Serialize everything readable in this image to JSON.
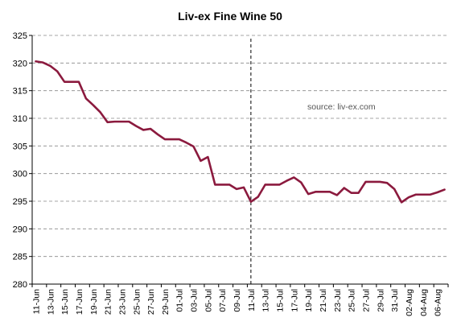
{
  "chart_data": {
    "type": "line",
    "title": "Liv-ex Fine Wine 50",
    "annotation": "source: liv-ex.com",
    "xlabel": "",
    "ylabel": "",
    "ylim": [
      280,
      325
    ],
    "yticks": [
      280,
      285,
      290,
      295,
      300,
      305,
      310,
      315,
      320,
      325
    ],
    "grid": true,
    "grid_style": "dashed",
    "legend": "none",
    "vertical_marker_label": "11-Jul",
    "line_color": "#8B1A3E",
    "x": [
      "11-Jun",
      "12-Jun",
      "13-Jun",
      "14-Jun",
      "15-Jun",
      "16-Jun",
      "17-Jun",
      "18-Jun",
      "19-Jun",
      "20-Jun",
      "21-Jun",
      "22-Jun",
      "23-Jun",
      "24-Jun",
      "25-Jun",
      "26-Jun",
      "27-Jun",
      "28-Jun",
      "29-Jun",
      "30-Jun",
      "01-Jul",
      "02-Jul",
      "03-Jul",
      "04-Jul",
      "05-Jul",
      "06-Jul",
      "07-Jul",
      "08-Jul",
      "09-Jul",
      "10-Jul",
      "11-Jul",
      "12-Jul",
      "13-Jul",
      "14-Jul",
      "15-Jul",
      "16-Jul",
      "17-Jul",
      "18-Jul",
      "19-Jul",
      "20-Jul",
      "21-Jul",
      "22-Jul",
      "23-Jul",
      "24-Jul",
      "25-Jul",
      "26-Jul",
      "27-Jul",
      "28-Jul",
      "29-Jul",
      "30-Jul",
      "31-Jul",
      "01-Aug",
      "02-Aug",
      "03-Aug",
      "04-Aug",
      "05-Aug",
      "06-Aug",
      "07-Aug"
    ],
    "xtick_labels": [
      "11-Jun",
      "13-Jun",
      "15-Jun",
      "17-Jun",
      "19-Jun",
      "21-Jun",
      "23-Jun",
      "25-Jun",
      "27-Jun",
      "29-Jun",
      "01-Jul",
      "03-Jul",
      "05-Jul",
      "07-Jul",
      "09-Jul",
      "11-Jul",
      "13-Jul",
      "15-Jul",
      "17-Jul",
      "19-Jul",
      "21-Jul",
      "23-Jul",
      "25-Jul",
      "27-Jul",
      "29-Jul",
      "31-Jul",
      "02-Aug",
      "04-Aug",
      "06-Aug"
    ],
    "series": [
      {
        "values": [
          320.3,
          320.1,
          319.5,
          318.5,
          316.6,
          316.6,
          316.6,
          313.6,
          312.4,
          311.1,
          309.3,
          309.4,
          309.4,
          309.4,
          308.6,
          307.9,
          308.1,
          307.1,
          306.2,
          306.2,
          306.2,
          305.6,
          304.9,
          302.3,
          303.0,
          298.0,
          298.0,
          298.0,
          297.2,
          297.5,
          294.9,
          295.8,
          298.0,
          298.0,
          298.0,
          298.7,
          299.3,
          298.4,
          296.3,
          296.7,
          296.7,
          296.7,
          296.1,
          297.4,
          296.5,
          296.5,
          298.5,
          298.5,
          298.5,
          298.3,
          297.2,
          294.8,
          295.7,
          296.2,
          296.2,
          296.2,
          296.6,
          297.1
        ]
      }
    ]
  }
}
